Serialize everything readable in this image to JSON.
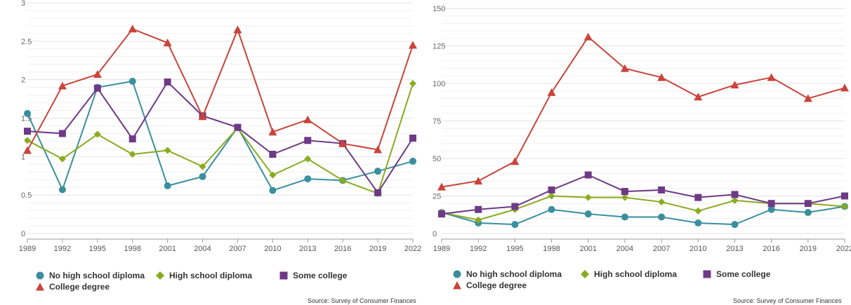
{
  "chart_data": [
    {
      "type": "line",
      "x": [
        "1989",
        "1992",
        "1995",
        "1998",
        "2001",
        "2004",
        "2007",
        "2010",
        "2013",
        "2016",
        "2019",
        "2022"
      ],
      "ylim": [
        0,
        3
      ],
      "yticks": [
        "0",
        "0.5",
        "1",
        "1.5",
        "2",
        "2.5",
        "3"
      ],
      "grid": true,
      "legend_position": "bottom-left",
      "series": [
        {
          "name": "No high school diploma",
          "color": "#3a8f9e",
          "marker": "circle",
          "values": [
            1.56,
            0.57,
            1.9,
            1.98,
            0.62,
            0.74,
            1.38,
            0.56,
            0.71,
            0.69,
            0.81,
            0.94
          ]
        },
        {
          "name": "High school diploma",
          "color": "#8aab1f",
          "marker": "diamond",
          "values": [
            1.21,
            0.97,
            1.29,
            1.03,
            1.08,
            0.87,
            1.37,
            0.76,
            0.97,
            0.69,
            0.52,
            1.95
          ]
        },
        {
          "name": "Some college",
          "color": "#6e3a86",
          "marker": "square",
          "values": [
            1.33,
            1.3,
            1.89,
            1.23,
            1.97,
            1.53,
            1.38,
            1.03,
            1.21,
            1.17,
            0.53,
            1.24
          ]
        },
        {
          "name": "College degree",
          "color": "#c9443a",
          "marker": "triangle",
          "values": [
            1.08,
            1.92,
            2.07,
            2.66,
            2.48,
            1.52,
            2.65,
            1.32,
            1.48,
            1.17,
            1.09,
            2.45
          ]
        }
      ]
    },
    {
      "type": "line",
      "x": [
        "1989",
        "1992",
        "1995",
        "1998",
        "2001",
        "2004",
        "2007",
        "2010",
        "2013",
        "2016",
        "2019",
        "2022"
      ],
      "ylim": [
        0,
        150
      ],
      "yticks": [
        "0",
        "25",
        "50",
        "75",
        "100",
        "125",
        "150"
      ],
      "grid": true,
      "legend_position": "bottom-left",
      "series": [
        {
          "name": "No high school diploma",
          "color": "#3a8f9e",
          "marker": "circle",
          "values": [
            14,
            7,
            6,
            16,
            13,
            11,
            11,
            7,
            6,
            16,
            14,
            18
          ]
        },
        {
          "name": "High school diploma",
          "color": "#8aab1f",
          "marker": "diamond",
          "values": [
            14,
            9,
            16,
            25,
            24,
            24,
            21,
            15,
            22,
            20,
            20,
            18
          ]
        },
        {
          "name": "Some college",
          "color": "#6e3a86",
          "marker": "square",
          "values": [
            13,
            16,
            18,
            29,
            39,
            28,
            29,
            24,
            26,
            20,
            20,
            25
          ]
        },
        {
          "name": "College degree",
          "color": "#c9443a",
          "marker": "triangle",
          "values": [
            31,
            35,
            48,
            94,
            131,
            110,
            104,
            91,
            99,
            104,
            90,
            97
          ]
        }
      ]
    }
  ],
  "legend": [
    {
      "label": "No high school diploma",
      "marker": "circle",
      "color": "#3a8f9e"
    },
    {
      "label": "High school diploma",
      "marker": "diamond",
      "color": "#8aab1f"
    },
    {
      "label": "Some college",
      "marker": "square",
      "color": "#6e3a86"
    },
    {
      "label": "College degree",
      "marker": "triangle",
      "color": "#c9443a"
    }
  ],
  "source": "Source: Survey of Consumer Finances"
}
